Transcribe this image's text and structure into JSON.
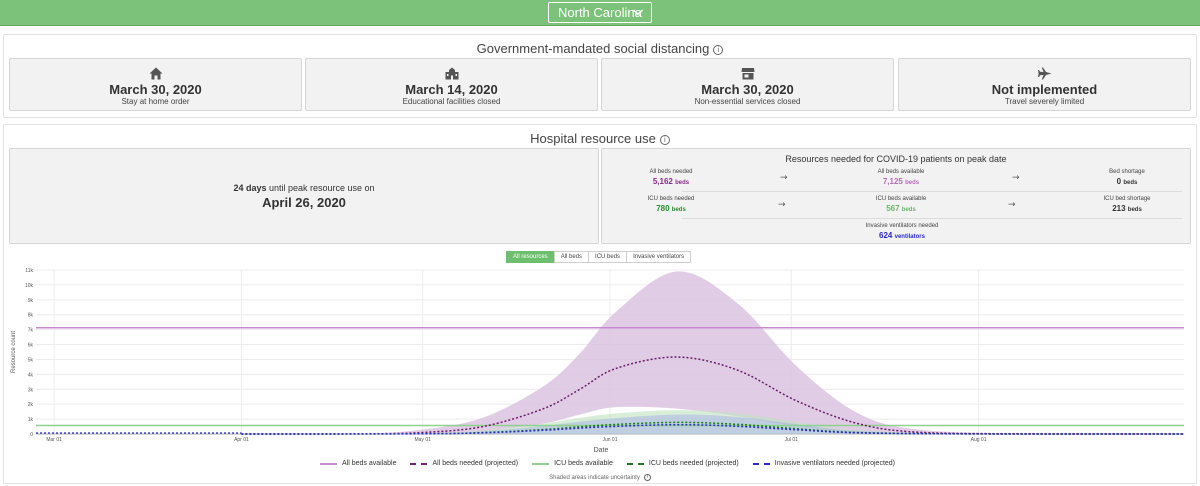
{
  "header": {
    "state": "North Carolina"
  },
  "social_distancing": {
    "title": "Government-mandated social distancing",
    "cards": [
      {
        "icon": "home-icon",
        "date": "March 30, 2020",
        "label": "Stay at home order"
      },
      {
        "icon": "school-icon",
        "date": "March 14, 2020",
        "label": "Educational facilities closed"
      },
      {
        "icon": "store-icon",
        "date": "March 30, 2020",
        "label": "Non-essential services closed"
      },
      {
        "icon": "airplane-icon",
        "date": "Not implemented",
        "label": "Travel severely limited"
      }
    ]
  },
  "hospital": {
    "title": "Hospital resource use",
    "days_until_peak": "24 days",
    "days_text": " until peak resource use on",
    "peak_date": "April 26, 2020",
    "resources_title": "Resources needed for COVID-19 patients on peak date",
    "all_beds_needed_label": "All beds needed",
    "all_beds_needed_value": "5,162",
    "all_beds_available_label": "All beds available",
    "all_beds_available_value": "7,125",
    "bed_shortage_label": "Bed shortage",
    "bed_shortage_value": "0",
    "icu_needed_label": "ICU beds needed",
    "icu_needed_value": "780",
    "icu_available_label": "ICU beds available",
    "icu_available_value": "567",
    "icu_shortage_label": "ICU bed shortage",
    "icu_shortage_value": "213",
    "vent_label": "Invasive ventilators needed",
    "vent_value": "624",
    "unit_beds": "beds",
    "unit_vent": "ventilators"
  },
  "tabs": [
    "All resources",
    "All beds",
    "ICU beds",
    "Invasive ventilators"
  ],
  "colors": {
    "header_green": "#7dc27a",
    "all_beds": "#8b2a8b",
    "all_beds_band": "#dcc3e1",
    "icu": "#6db36d",
    "icu_needed": "#1f7a1f",
    "ventilators": "#2a2ad0"
  },
  "chart_data": {
    "type": "line",
    "xlabel": "Date",
    "ylabel": "Resource count",
    "x_ticks": [
      "Mar 01",
      "Apr 01",
      "May 01",
      "Jun 01",
      "Jul 01",
      "Aug 01"
    ],
    "y_ticks": [
      "0",
      "1k",
      "2k",
      "3k",
      "4k",
      "5k",
      "6k",
      "7k",
      "8k",
      "9k",
      "10k",
      "11k"
    ],
    "ylim": [
      0,
      11000
    ],
    "xlim_days": [
      -34,
      156
    ],
    "series": [
      {
        "name": "All beds available",
        "style": "solid",
        "x_days": [
          -34,
          156
        ],
        "values": [
          7125,
          7125
        ]
      },
      {
        "name": "All beds needed (projected)",
        "style": "dotted",
        "x_days": [
          0,
          20,
          30,
          40,
          50,
          56,
          62,
          72,
          82,
          92,
          102,
          112,
          130,
          156
        ],
        "values": [
          0,
          10,
          100,
          500,
          1700,
          3000,
          4400,
          5162,
          4300,
          2200,
          700,
          120,
          10,
          0
        ],
        "band_upper": [
          0,
          30,
          300,
          1100,
          3200,
          5400,
          8200,
          10900,
          8800,
          4500,
          1400,
          300,
          30,
          0
        ],
        "band_lower": [
          0,
          2,
          30,
          200,
          700,
          1300,
          1800,
          1700,
          1200,
          500,
          100,
          10,
          0,
          0
        ]
      },
      {
        "name": "ICU beds available",
        "style": "solid",
        "x_days": [
          -34,
          156
        ],
        "values": [
          567,
          567
        ]
      },
      {
        "name": "ICU beds needed (projected)",
        "style": "dotted",
        "x_days": [
          0,
          30,
          40,
          50,
          60,
          72,
          82,
          92,
          102,
          120,
          156
        ],
        "values": [
          0,
          20,
          100,
          300,
          600,
          780,
          650,
          350,
          100,
          10,
          0
        ],
        "band_upper": [
          0,
          60,
          250,
          700,
          1300,
          1600,
          1400,
          800,
          250,
          30,
          0
        ]
      },
      {
        "name": "Invasive ventilators needed (projected)",
        "style": "dotted",
        "x_days": [
          0,
          30,
          40,
          50,
          60,
          72,
          82,
          92,
          102,
          120,
          156
        ],
        "values": [
          0,
          15,
          80,
          250,
          480,
          624,
          520,
          280,
          80,
          8,
          0
        ],
        "band_upper": [
          0,
          50,
          200,
          550,
          1000,
          1300,
          1150,
          650,
          200,
          25,
          0
        ]
      }
    ],
    "note": "Shaded areas indicate uncertainty"
  }
}
